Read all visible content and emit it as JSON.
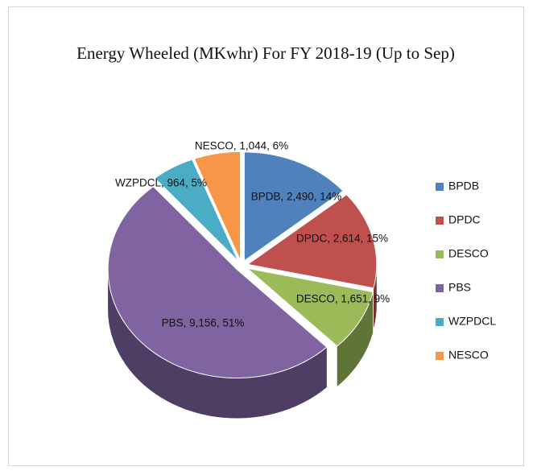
{
  "chart_data": {
    "type": "pie",
    "title": "Energy  Wheeled (MKwhr) For FY 2018-19  (Up to Sep)",
    "categories": [
      "BPDB",
      "DPDC",
      "DESCO",
      "PBS",
      "WZPDCL",
      "NESCO"
    ],
    "values": [
      2490,
      2614,
      1651,
      9156,
      964,
      1044
    ],
    "value_labels": [
      "BPDB,  2,490, 14%",
      "DPDC,  2,614, 15%",
      "DESCO, 1,651, 9%",
      "PBS, 9,156, 51%",
      "WZPDCL, 964, 5%",
      "NESCO, 1,044, 6%"
    ],
    "colors": [
      "#4f81bd",
      "#c0504d",
      "#9bbb59",
      "#8064a2",
      "#4bacc6",
      "#f79646"
    ],
    "legend": "right"
  }
}
